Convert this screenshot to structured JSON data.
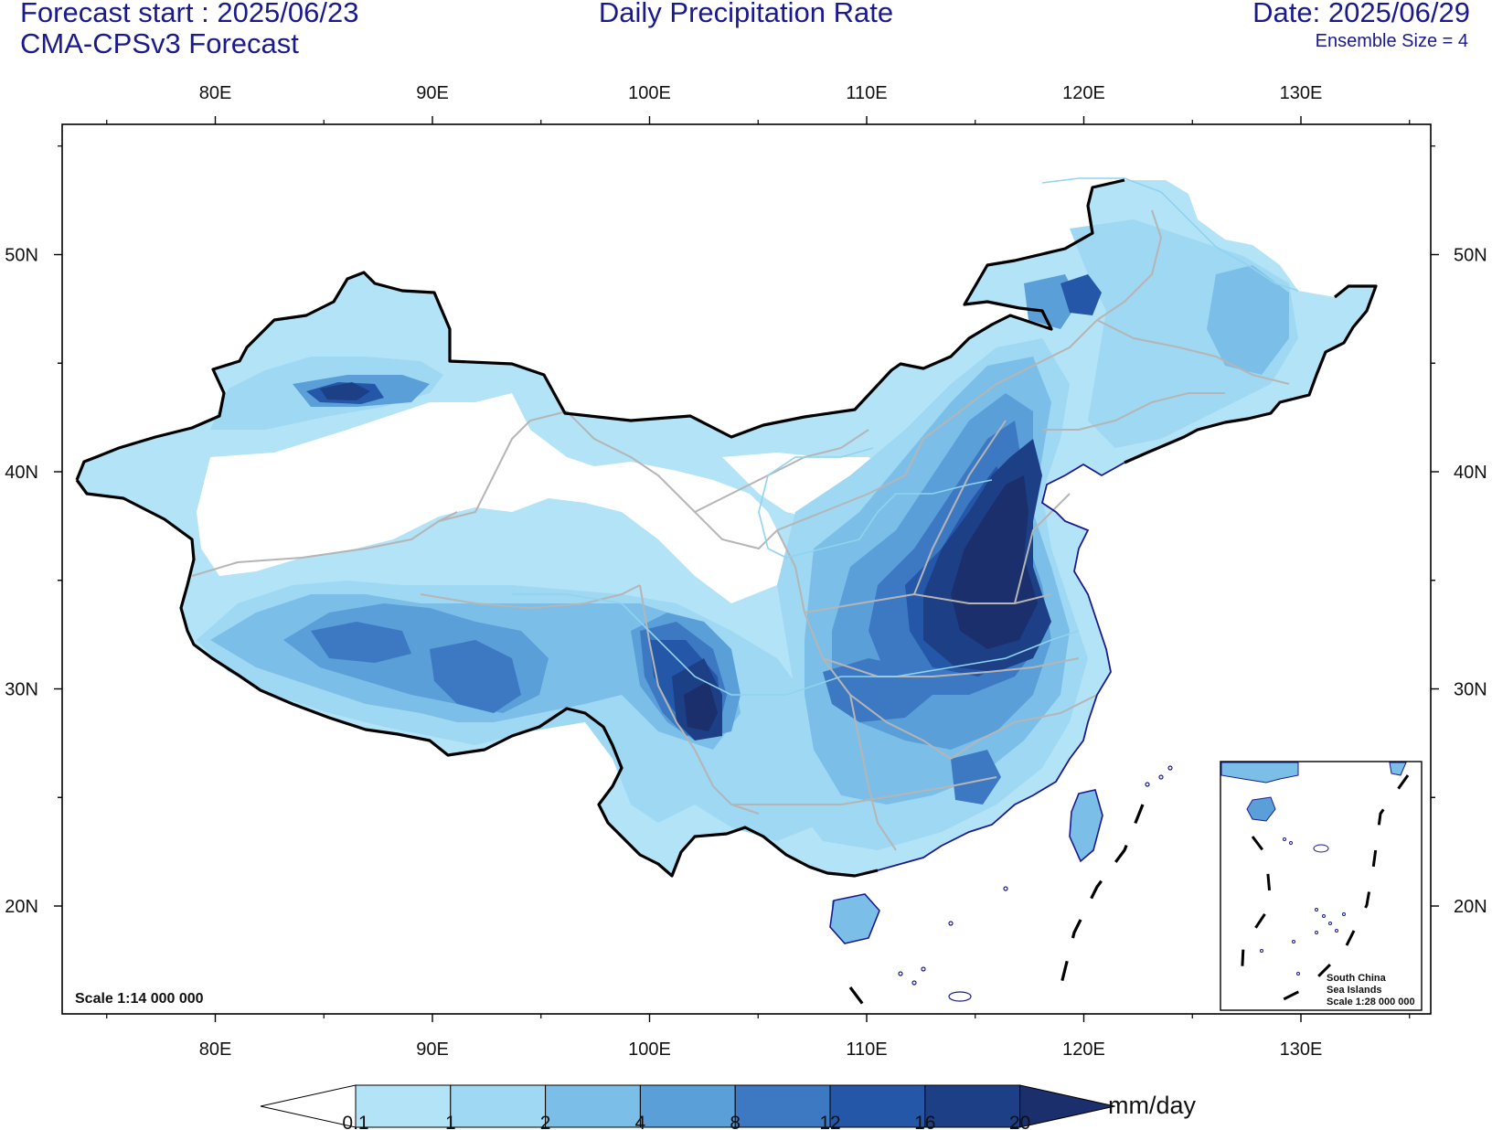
{
  "header": {
    "forecast_start": "Forecast start : 2025/06/23",
    "model": "CMA-CPSv3 Forecast",
    "title": "Daily Precipitation Rate",
    "date": "Date: 2025/06/29",
    "ensemble": "Ensemble Size = 4"
  },
  "map": {
    "region": "China",
    "lon_range": [
      73.5,
      136.5
    ],
    "lat_range": [
      15.2,
      56.0
    ],
    "lon_ticks": [
      {
        "value": 80,
        "label": "80E"
      },
      {
        "value": 90,
        "label": "90E"
      },
      {
        "value": 100,
        "label": "100E"
      },
      {
        "value": 110,
        "label": "110E"
      },
      {
        "value": 120,
        "label": "120E"
      },
      {
        "value": 130,
        "label": "130E"
      }
    ],
    "lat_ticks": [
      {
        "value": 20,
        "label": "20N"
      },
      {
        "value": 30,
        "label": "30N"
      },
      {
        "value": 40,
        "label": "40N"
      },
      {
        "value": 50,
        "label": "50N"
      }
    ],
    "scale_label": "Scale 1:14 000 000"
  },
  "inset": {
    "lines": [
      "South China",
      "Sea Islands",
      "Scale 1:28 000 000"
    ]
  },
  "colorbar": {
    "unit": "mm/day",
    "levels": [
      "0.1",
      "1",
      "2",
      "4",
      "8",
      "12",
      "16",
      "20"
    ],
    "colors": [
      "#ffffff",
      "#b3e3f7",
      "#9fd8f3",
      "#7bbfe8",
      "#5a9fd8",
      "#3c79c2",
      "#2457a8",
      "#1c3f86",
      "#1a2f6b"
    ]
  },
  "colors": {
    "header_text": "#1a1a8c",
    "border": "#000000",
    "province_line": "#b5b5b5",
    "coast_line": "#1a1a8c"
  }
}
